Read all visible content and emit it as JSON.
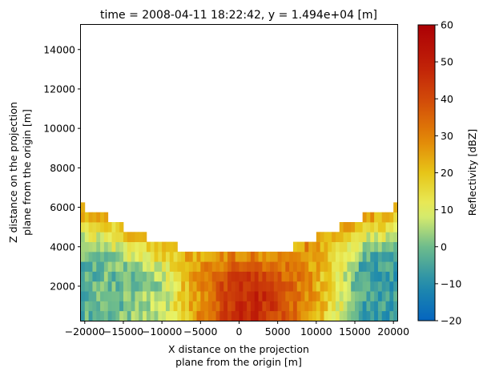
{
  "chart_data": {
    "type": "heatmap",
    "title": "time = 2008-04-11 18:22:42, y = 1.494e+04 [m]",
    "xlabel_lines": [
      "X distance on the projection",
      "plane from the origin [m]"
    ],
    "ylabel_lines": [
      "Z distance on the projection",
      "plane from the origin [m]"
    ],
    "xlim": [
      -20500,
      20500
    ],
    "ylim": [
      250,
      15250
    ],
    "x_ticks": [
      -20000,
      -15000,
      -10000,
      -5000,
      0,
      5000,
      10000,
      15000,
      20000
    ],
    "x_tick_labels": [
      "−20000",
      "−15000",
      "−10000",
      "−5000",
      "0",
      "5000",
      "10000",
      "15000",
      "20000"
    ],
    "y_ticks": [
      2000,
      4000,
      6000,
      8000,
      10000,
      12000,
      14000
    ],
    "y_tick_labels": [
      "2000",
      "4000",
      "6000",
      "8000",
      "10000",
      "12000",
      "14000"
    ],
    "grid": false,
    "colorbar": {
      "label": "Reflectivity [dBZ]",
      "min": -20,
      "max": 60,
      "ticks": [
        -20,
        -10,
        0,
        10,
        20,
        30,
        40,
        50,
        60
      ],
      "tick_labels": [
        "−20",
        "−10",
        "0",
        "10",
        "20",
        "30",
        "40",
        "50",
        "60"
      ],
      "colormap": "HomeyerRainbow"
    },
    "cell_width_m": 500,
    "cell_height_m": 500,
    "profile": {
      "x": [
        -20000,
        -19000,
        -17000,
        -15000,
        -14000,
        -12000,
        -10000,
        -8000,
        -6000,
        -4000,
        -2000,
        0,
        2000,
        4000,
        6000,
        7000,
        9000,
        10000,
        11000,
        13000,
        14000,
        16000,
        17000,
        18500,
        19500,
        20000
      ],
      "top": [
        6250,
        5750,
        5750,
        5250,
        4750,
        4750,
        4250,
        4250,
        3750,
        3750,
        3750,
        3750,
        3750,
        3750,
        3750,
        4250,
        4250,
        4750,
        4750,
        5250,
        5250,
        5750,
        5750,
        5750,
        5750,
        6250
      ]
    },
    "core": {
      "x": [
        -20000,
        -15000,
        -10000,
        -7000,
        -4000,
        -2000,
        0,
        2000,
        4000,
        6000,
        8000,
        10000,
        12000,
        14000,
        16000,
        18000,
        20000
      ],
      "dbz": [
        -2,
        0,
        5,
        20,
        32,
        40,
        46,
        48,
        43,
        38,
        30,
        24,
        15,
        5,
        -4,
        -7,
        -6
      ]
    },
    "top_dbz": [
      20,
      30
    ],
    "colors": {
      "background": "#ffffff",
      "axes": "#000000"
    }
  }
}
